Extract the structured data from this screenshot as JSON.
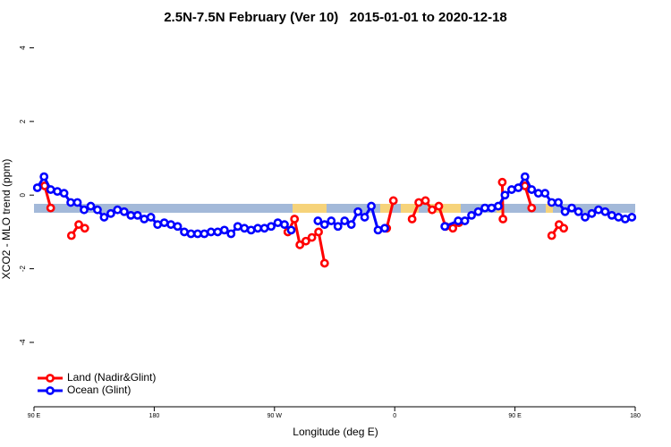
{
  "chart_data": {
    "type": "line",
    "title": "2.5N-7.5N February (Ver 10)   2015-01-01 to 2020-12-18",
    "xlabel": "Longitude (deg E)",
    "ylabel": "XCO2 - MLO trend (ppm)",
    "xlim": [
      90,
      540
    ],
    "ylim": [
      -5.7,
      4.4
    ],
    "xticks": [
      {
        "value": 90,
        "label": "90 E"
      },
      180,
      {
        "value": 270,
        "label": "90 W"
      },
      {
        "value": 360,
        "label": "0"
      },
      {
        "value": 450,
        "label": "90 E"
      },
      {
        "value": 540,
        "label": "180"
      }
    ],
    "yticks": [
      -4,
      -2,
      0,
      2,
      4
    ],
    "legend": "bottom-left",
    "series": [
      {
        "name": "Land (Nadir&Glint)",
        "color": "#ff0000",
        "x": [
          98,
          102.5,
          110,
          118,
          123.5,
          128,
          200,
          280,
          285,
          289,
          293.5,
          298,
          303,
          307.5,
          330,
          354,
          359,
          366,
          373,
          378,
          383,
          388,
          393,
          398,
          403.5,
          408,
          425,
          440.5,
          441,
          450,
          457.5,
          462.5,
          470,
          477.5,
          483,
          486.5
        ],
        "values": [
          0.25,
          -0.35,
          null,
          -1.1,
          -0.8,
          -0.9,
          null,
          -1.0,
          -0.65,
          -1.35,
          -1.25,
          -1.15,
          -1.0,
          -1.85,
          null,
          -0.9,
          -0.15,
          null,
          -0.65,
          -0.2,
          -0.15,
          -0.4,
          -0.3,
          -0.85,
          -0.9,
          -0.75,
          null,
          0.35,
          -0.65,
          null,
          0.25,
          -0.35,
          null,
          -1.1,
          -0.8,
          -0.9
        ]
      },
      {
        "name": "Ocean (Glint)",
        "color": "#0000ff",
        "x": [
          92.5,
          97.5,
          102.5,
          107.5,
          112.5,
          117.5,
          122.5,
          127.5,
          132.5,
          137.5,
          142.5,
          147.5,
          152.5,
          157.5,
          162.5,
          167.5,
          172.5,
          177.5,
          182.5,
          187.5,
          192.5,
          197.5,
          202.5,
          207.5,
          212.5,
          217.5,
          222.5,
          227.5,
          232.5,
          237.5,
          242.5,
          247.5,
          252.5,
          257.5,
          262.5,
          267.5,
          272.5,
          277.5,
          282.5,
          292.5,
          302.5,
          307.5,
          312.5,
          317.5,
          322.5,
          327.5,
          332.5,
          337.5,
          342.5,
          347.5,
          352.5,
          372.5,
          397.5,
          407.5,
          412.5,
          417.5,
          422.5,
          427.5,
          432.5,
          437.5,
          442.5,
          447.5,
          452.5,
          457.5,
          462.5,
          467.5,
          472.5,
          477.5,
          482.5,
          487.5,
          492.5,
          497.5,
          502.5,
          507.5,
          512.5,
          517.5,
          522.5,
          527.5,
          532.5,
          537.5
        ],
        "values": [
          0.2,
          0.5,
          0.15,
          0.1,
          0.05,
          -0.2,
          -0.2,
          -0.4,
          -0.3,
          -0.4,
          -0.6,
          -0.5,
          -0.4,
          -0.45,
          -0.55,
          -0.55,
          -0.65,
          -0.6,
          -0.8,
          -0.75,
          -0.8,
          -0.85,
          -1.0,
          -1.05,
          -1.05,
          -1.05,
          -1.0,
          -1.0,
          -0.95,
          -1.05,
          -0.85,
          -0.9,
          -0.95,
          -0.9,
          -0.9,
          -0.85,
          -0.75,
          -0.8,
          -0.95,
          null,
          -0.7,
          -0.8,
          -0.7,
          -0.85,
          -0.7,
          -0.8,
          -0.45,
          -0.6,
          -0.3,
          -0.95,
          -0.9,
          null,
          -0.85,
          -0.7,
          -0.7,
          -0.55,
          -0.45,
          -0.35,
          -0.35,
          -0.3,
          0.0,
          0.15,
          0.2,
          0.5,
          0.15,
          0.05,
          0.05,
          -0.2,
          -0.2,
          -0.45,
          -0.35,
          -0.45,
          -0.6,
          -0.5,
          -0.4,
          -0.45,
          -0.55,
          -0.6,
          -0.65,
          -0.6
        ]
      }
    ]
  }
}
